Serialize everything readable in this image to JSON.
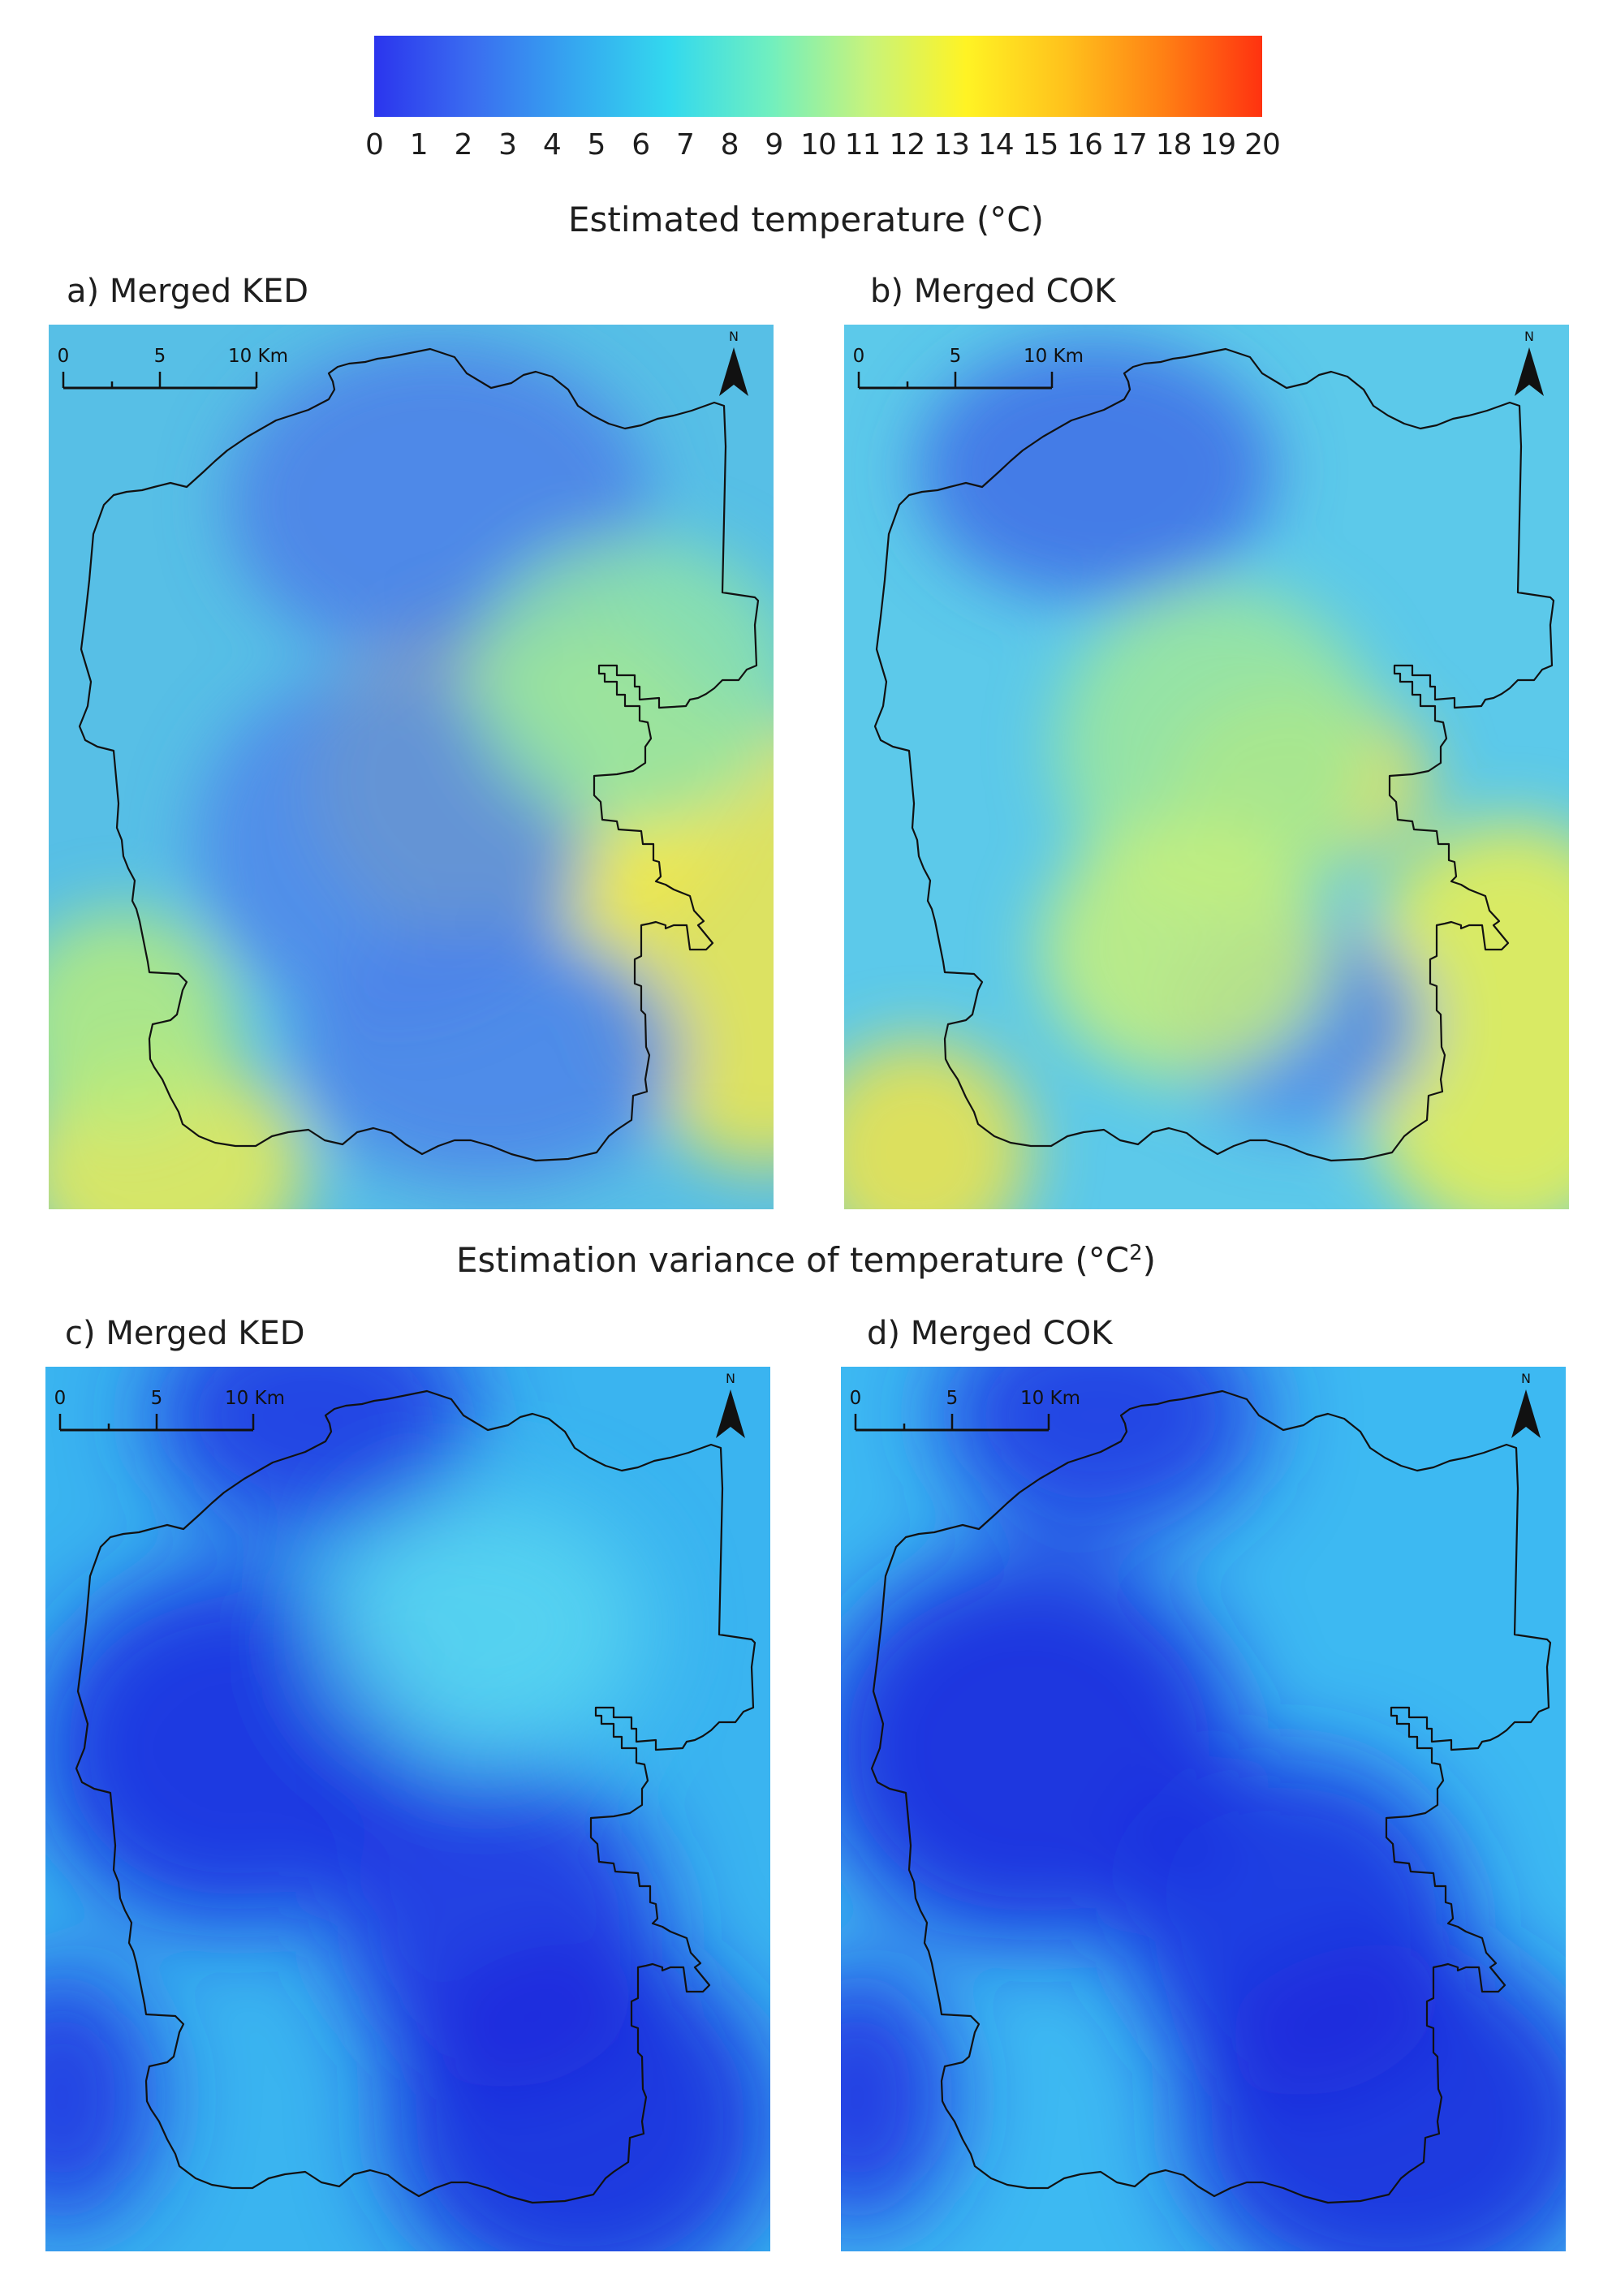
{
  "legend": {
    "ticks": [
      "0",
      "1",
      "2",
      "3",
      "4",
      "5",
      "6",
      "7",
      "8",
      "9",
      "10",
      "11",
      "12",
      "13",
      "14",
      "15",
      "16",
      "17",
      "18",
      "19",
      "20"
    ],
    "gradient_colors": [
      "#2b35ee",
      "#3a6df0",
      "#35a6f0",
      "#33d9ee",
      "#6fefc0",
      "#c7f37c",
      "#fff324",
      "#ffc21c",
      "#ff8014",
      "#ff3210"
    ]
  },
  "sections": {
    "temperature_title": "Estimated temperature (°C)",
    "variance_title_main": "Estimation variance of temperature (°C",
    "variance_title_sup": "2",
    "variance_title_end": ")"
  },
  "panels": [
    {
      "label": "a) Merged KED",
      "scale_0": "0",
      "scale_5": "5",
      "scale_10": "10 Km",
      "north": "N",
      "base_color": "#57bfe6",
      "blobs": [
        {
          "color": "#f1ef4a",
          "tone": "warm"
        },
        {
          "color": "#f3e84a",
          "tone": "warm"
        },
        {
          "color": "#ecec52",
          "tone": "warm"
        },
        {
          "color": "#4c7fe8",
          "tone": "cool"
        },
        {
          "color": "#4f86ea",
          "tone": "cool"
        },
        {
          "color": "#4c82e9",
          "tone": "cool"
        },
        {
          "color": "#8fe3a8",
          "tone": "mid"
        },
        {
          "color": "#b7ec7c",
          "tone": "mid"
        }
      ]
    },
    {
      "label": "b) Merged COK",
      "scale_0": "0",
      "scale_5": "5",
      "scale_10": "10 Km",
      "north": "N",
      "base_color": "#5cc9ea",
      "blobs": [
        {
          "color": "#f6e23a",
          "tone": "warm"
        },
        {
          "color": "#f2e444",
          "tone": "warm"
        },
        {
          "color": "#eef04d",
          "tone": "warm"
        },
        {
          "color": "#3f6fe6",
          "tone": "cool"
        },
        {
          "color": "#4d86ea",
          "tone": "cool"
        },
        {
          "color": "#9fe89a",
          "tone": "mid"
        },
        {
          "color": "#c8f07a",
          "tone": "mid"
        }
      ]
    },
    {
      "label": "c) Merged KED",
      "scale_0": "0",
      "scale_5": "5",
      "scale_10": "10 Km",
      "north": "N",
      "base_color": "#3ab4f0",
      "blobs": [
        {
          "color": "#1a24de",
          "tone": "deep"
        },
        {
          "color": "#1d2ee0",
          "tone": "deep"
        },
        {
          "color": "#1b26dc",
          "tone": "deep"
        },
        {
          "color": "#1d2de0",
          "tone": "deep"
        },
        {
          "color": "#1e34e2",
          "tone": "deep"
        },
        {
          "color": "#59d6f0",
          "tone": "light"
        }
      ]
    },
    {
      "label": "d) Merged COK",
      "scale_0": "0",
      "scale_5": "5",
      "scale_10": "10 Km",
      "north": "N",
      "base_color": "#3db9f2",
      "blobs": [
        {
          "color": "#1a22dc",
          "tone": "deep"
        },
        {
          "color": "#1b2ade",
          "tone": "deep"
        },
        {
          "color": "#1a24dc",
          "tone": "deep"
        },
        {
          "color": "#1c2ce0",
          "tone": "deep"
        },
        {
          "color": "#1e34e2",
          "tone": "deep"
        }
      ]
    }
  ]
}
